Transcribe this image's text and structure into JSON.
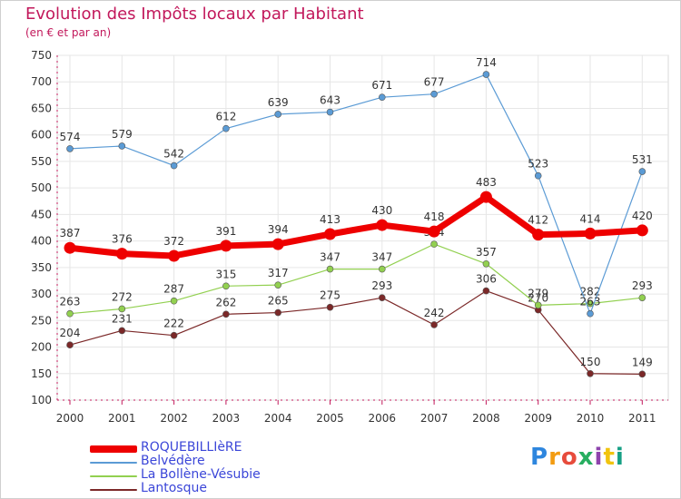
{
  "title": "Evolution des Impôts locaux par Habitant",
  "subtitle": "(en € et par an)",
  "logo": "Proxiti",
  "chart_data": {
    "type": "line",
    "x": [
      "2000",
      "2001",
      "2002",
      "2003",
      "2004",
      "2005",
      "2006",
      "2007",
      "2008",
      "2009",
      "2010",
      "2011"
    ],
    "ylim": [
      100,
      750
    ],
    "yticks": [
      100,
      150,
      200,
      250,
      300,
      350,
      400,
      450,
      500,
      550,
      600,
      650,
      700,
      750
    ],
    "grid": true,
    "legend_position": "bottom-left",
    "series": [
      {
        "name": "ROQUEBILLIèRE",
        "color": "#ee0000",
        "values": [
          387,
          376,
          372,
          391,
          394,
          413,
          430,
          418,
          483,
          412,
          414,
          420
        ],
        "labels": [
          "387",
          "376",
          "372",
          "391",
          "394",
          "413",
          "430",
          "418",
          "483",
          "412",
          "414",
          "420"
        ]
      },
      {
        "name": "Belvédère",
        "color": "#5b9bd5",
        "values": [
          574,
          579,
          542,
          612,
          639,
          643,
          671,
          677,
          714,
          523,
          263,
          531
        ],
        "labels": [
          "574",
          "579",
          "542",
          "612",
          "639",
          "643",
          "671",
          "677",
          "714",
          "523",
          "263",
          "531"
        ]
      },
      {
        "name": "La Bollène-Vésubie",
        "color": "#92d050",
        "values": [
          263,
          272,
          287,
          315,
          317,
          347,
          347,
          394,
          357,
          279,
          282,
          293
        ],
        "labels": [
          "263",
          "272",
          "287",
          "315",
          "317",
          "347",
          "347",
          "394",
          "357",
          "279",
          "282",
          "293"
        ]
      },
      {
        "name": "Lantosque",
        "color": "#7b2828",
        "values": [
          204,
          231,
          222,
          262,
          265,
          275,
          293,
          242,
          306,
          270,
          150,
          149
        ],
        "labels": [
          "204",
          "231",
          "222",
          "262",
          "265",
          "275",
          "293",
          "242",
          "306",
          "270",
          "150",
          "149"
        ]
      }
    ]
  }
}
